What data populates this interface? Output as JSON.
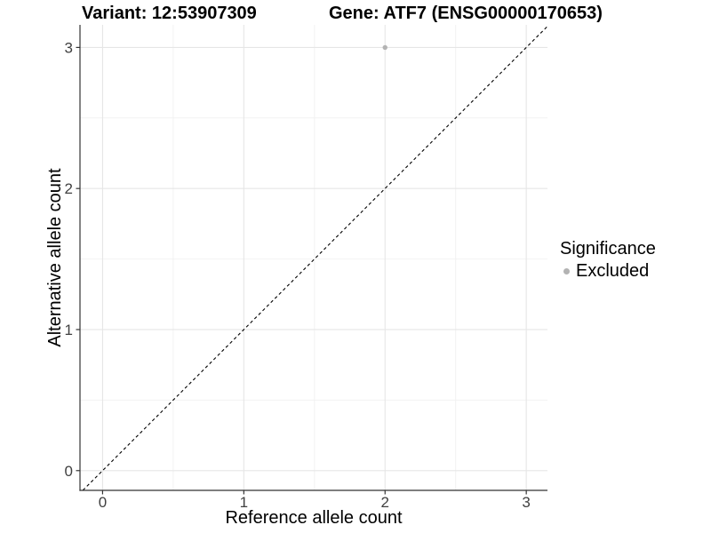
{
  "header": {
    "title_left": "Variant: 12:53907309",
    "title_right": "Gene: ATF7 (ENSG00000170653)"
  },
  "legend": {
    "title": "Significance",
    "items": [
      {
        "label": "Excluded",
        "color": "#b3b3b3",
        "marker": "circle"
      }
    ]
  },
  "chart_data": {
    "type": "scatter",
    "xlabel": "Reference allele count",
    "ylabel": "Alternative allele count",
    "xlim": [
      -0.16,
      3.15
    ],
    "ylim": [
      -0.14,
      3.16
    ],
    "xticks": [
      0,
      1,
      2,
      3
    ],
    "yticks": [
      0,
      1,
      2,
      3
    ],
    "minor_gridlines_x": [
      0.5,
      1.5,
      2.5
    ],
    "minor_gridlines_y": [
      0.5,
      1.5,
      2.5
    ],
    "grid": "major+minor",
    "series": [
      {
        "name": "Excluded",
        "color": "#b3b3b3",
        "points": [
          {
            "x": 2,
            "y": 3
          }
        ]
      }
    ],
    "reference_line": {
      "kind": "identity y=x",
      "style": "dashed",
      "color": "#000000"
    },
    "colors": {
      "background": "#ffffff",
      "major_grid": "#e6e6e6",
      "minor_grid": "#f2f2f2",
      "axis_line": "#333333",
      "tick_text": "#404040"
    }
  }
}
